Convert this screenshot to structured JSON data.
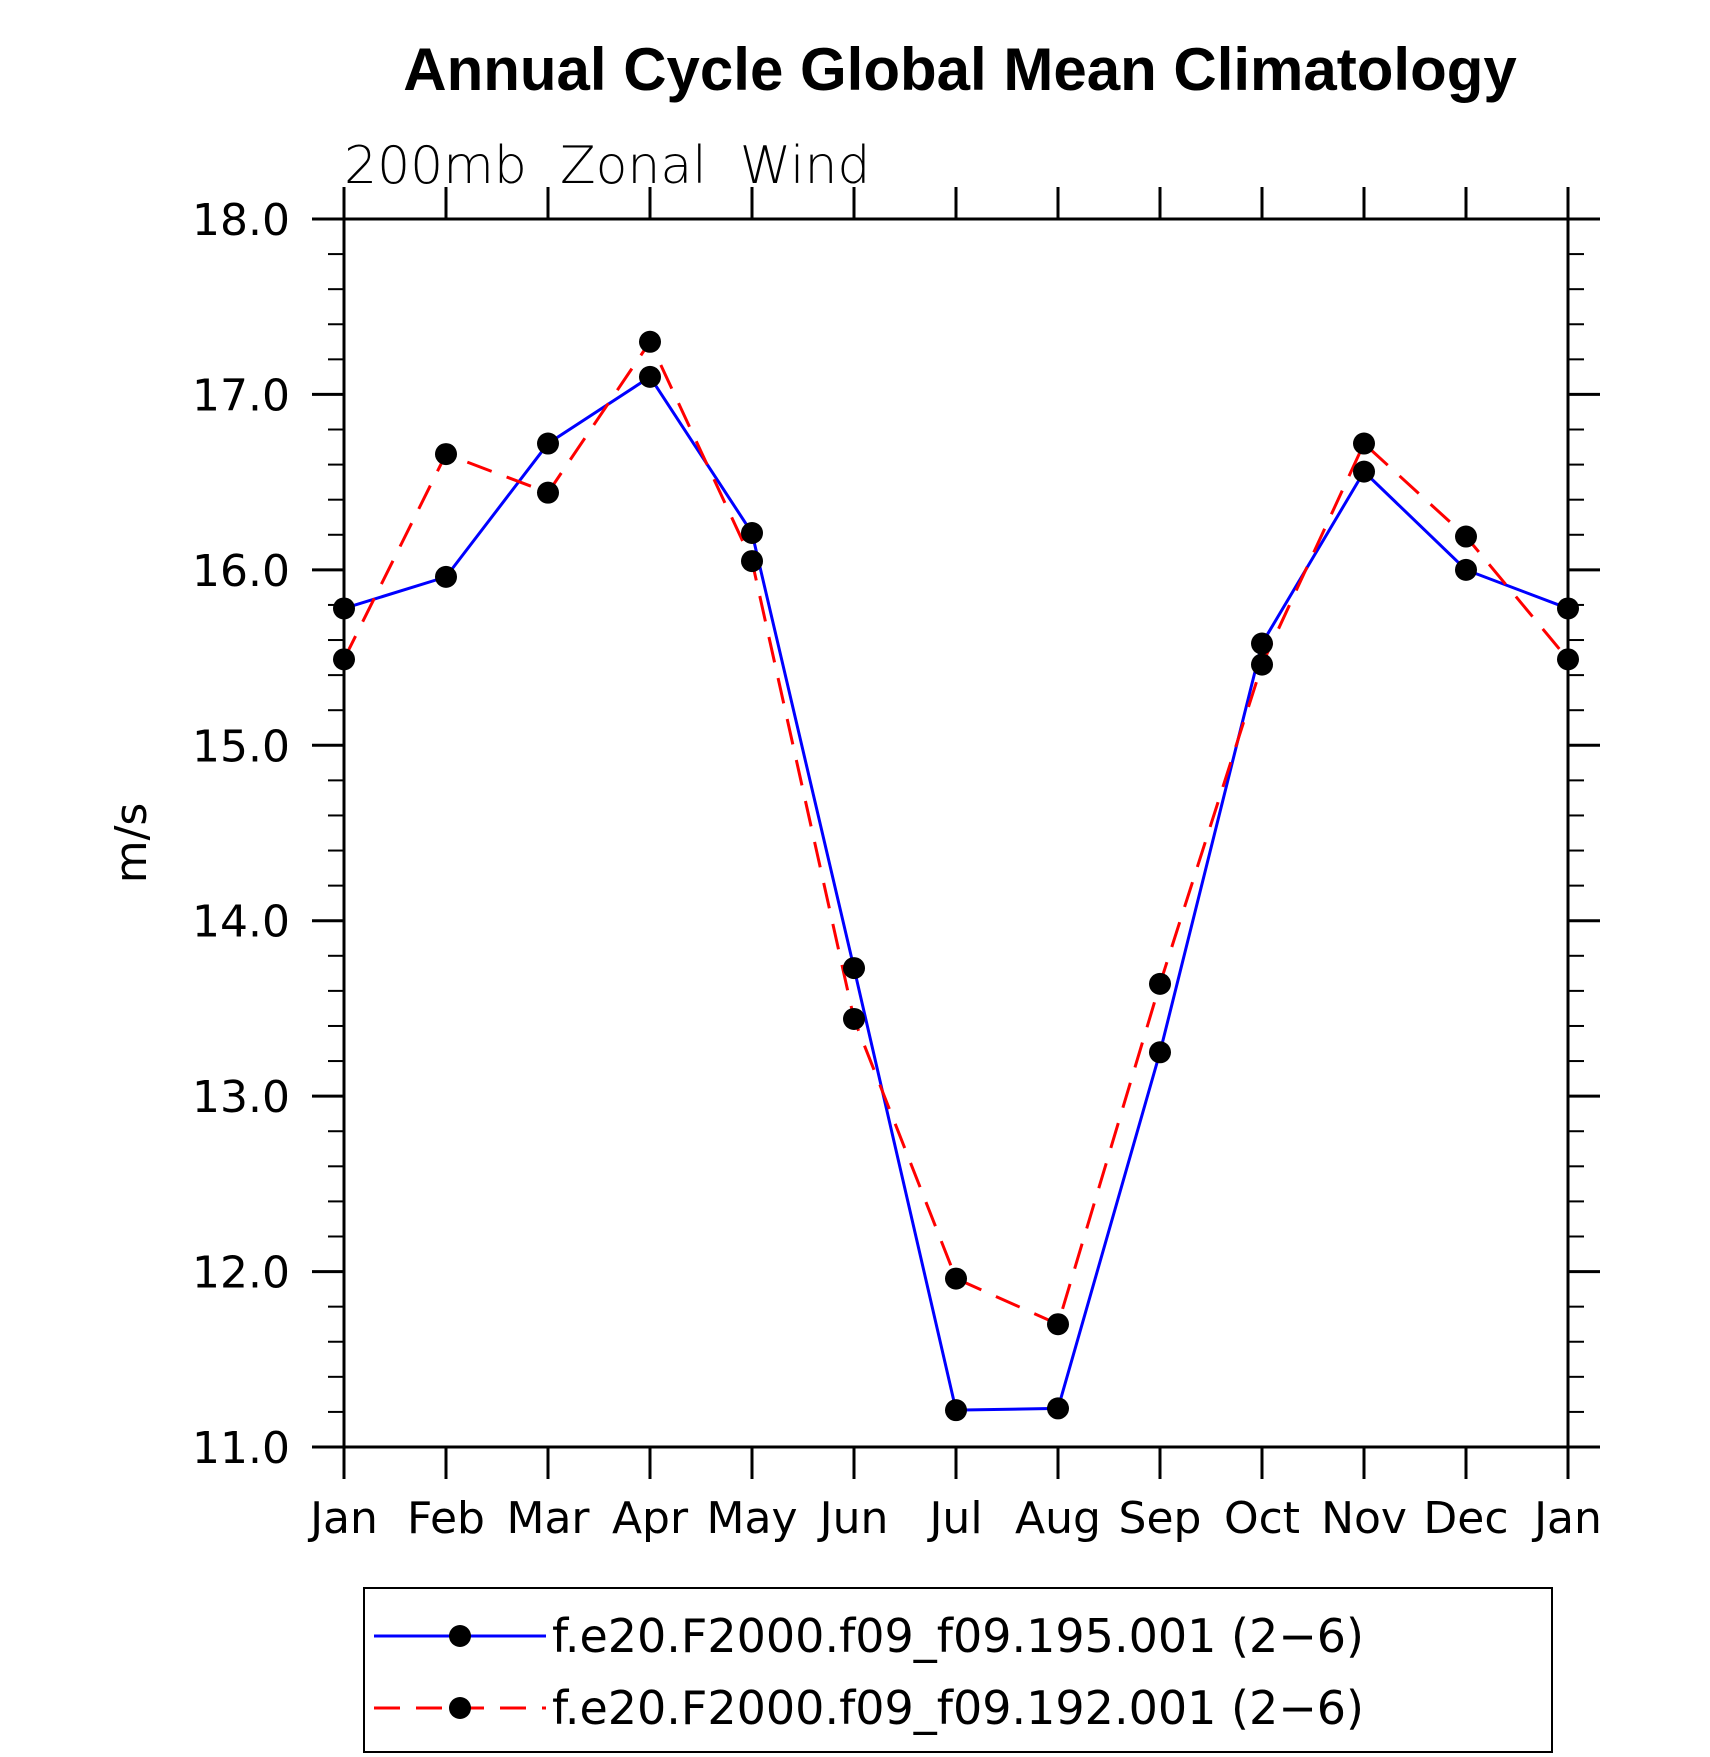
{
  "chart_data": {
    "type": "line",
    "title": "Annual Cycle Global Mean Climatology",
    "subtitle": "200mb  Zonal  Wind",
    "xlabel": "",
    "ylabel": "m/s",
    "categories": [
      "Jan",
      "Feb",
      "Mar",
      "Apr",
      "May",
      "Jun",
      "Jul",
      "Aug",
      "Sep",
      "Oct",
      "Nov",
      "Dec",
      "Jan"
    ],
    "ylim": [
      11.0,
      18.0
    ],
    "yticks": [
      "11.0",
      "12.0",
      "13.0",
      "14.0",
      "15.0",
      "16.0",
      "17.0",
      "18.0"
    ],
    "legend_position": "bottom",
    "grid": false,
    "series": [
      {
        "name": "f.e20.F2000.f09_f09.195.001 (2−6)",
        "color": "#0000ff",
        "line_style": "solid",
        "marker": "filled-circle",
        "values": [
          15.78,
          15.96,
          16.72,
          17.1,
          16.21,
          13.73,
          11.21,
          11.22,
          13.25,
          15.58,
          16.56,
          16.0,
          15.78
        ]
      },
      {
        "name": "f.e20.F2000.f09_f09.192.001 (2−6)",
        "color": "#ff0000",
        "line_style": "dashed",
        "marker": "filled-circle",
        "values": [
          15.49,
          16.66,
          16.44,
          17.3,
          16.05,
          13.44,
          11.96,
          11.7,
          13.64,
          15.46,
          16.72,
          16.19,
          15.49
        ]
      }
    ]
  }
}
